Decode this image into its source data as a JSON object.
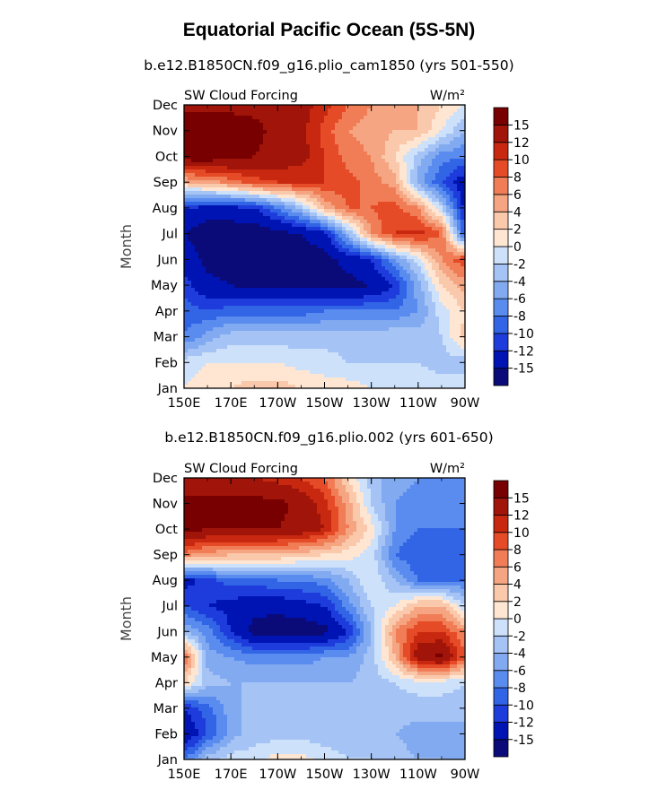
{
  "main_title": "Equatorial Pacific Ocean (5S-5N)",
  "colors": [
    "#0a0a78",
    "#0014b4",
    "#1e3cdc",
    "#3264e6",
    "#5a8cf0",
    "#82aaf0",
    "#a5c3f5",
    "#cde1fa",
    "#ffe6d2",
    "#fac8aa",
    "#f5a582",
    "#f07d55",
    "#e64b28",
    "#c8280f",
    "#a0140a",
    "#780000"
  ],
  "chart_data": [
    {
      "type": "heatmap",
      "run_title": "b.e12.B1850CN.f09_g16.plio_cam1850 (yrs 501-550)",
      "variable_label": "SW Cloud Forcing",
      "units_label": "W/m²",
      "ylabel": "Month",
      "x_tick_labels": [
        "150E",
        "170E",
        "170W",
        "150W",
        "130W",
        "110W",
        "90W"
      ],
      "y_tick_labels": [
        "Jan",
        "Feb",
        "Mar",
        "Apr",
        "May",
        "Jun",
        "Jul",
        "Aug",
        "Sep",
        "Oct",
        "Nov",
        "Dec"
      ],
      "colorbar_labels": [
        "-15",
        "-12",
        "-10",
        "-8",
        "-6",
        "-4",
        "-2",
        "0",
        "2",
        "4",
        "6",
        "8",
        "10",
        "12",
        "15"
      ],
      "x": [
        "150E",
        "160E",
        "170E",
        "180",
        "170W",
        "160W",
        "150W",
        "140W",
        "130W",
        "120W",
        "110W",
        "100W",
        "90W"
      ],
      "y": [
        "Jan",
        "Feb",
        "Mar",
        "Apr",
        "May",
        "Jun",
        "Jul",
        "Aug",
        "Sep",
        "Oct",
        "Nov",
        "Dec"
      ],
      "z": [
        [
          0,
          1,
          2,
          3,
          3,
          2,
          1,
          1,
          0,
          0,
          0,
          -1,
          -1
        ],
        [
          -1,
          0,
          0,
          0,
          0,
          -1,
          -1,
          -2,
          -2,
          -2,
          -2,
          -3,
          -3
        ],
        [
          -8,
          -5,
          -3,
          -3,
          -3,
          -3,
          -3,
          -3,
          -3,
          -2,
          -3,
          -2,
          3
        ],
        [
          -9,
          -10,
          -9,
          -9,
          -9,
          -9,
          -8,
          -8,
          -8,
          -8,
          -6,
          -1,
          2
        ],
        [
          -11,
          -14,
          -15,
          -16,
          -16,
          -16,
          -16,
          -16,
          -15,
          -12,
          -5,
          2,
          5
        ],
        [
          -13,
          -16,
          -17,
          -17,
          -17,
          -17,
          -16,
          -14,
          -12,
          -6,
          -1,
          6,
          10
        ],
        [
          -15,
          -17,
          -17,
          -17,
          -16,
          -15,
          -13,
          -4,
          6,
          10,
          11,
          8,
          -10
        ],
        [
          -12,
          -13,
          -13,
          -12,
          -8,
          -3,
          4,
          8,
          8,
          9,
          6,
          -2,
          -13
        ],
        [
          4,
          5,
          7,
          9,
          10,
          10,
          10,
          9,
          7,
          5,
          -5,
          -10,
          -14
        ],
        [
          17,
          17,
          16,
          15,
          14,
          13,
          10,
          7,
          6,
          2,
          -3,
          -7,
          -8
        ],
        [
          17,
          17,
          17,
          16,
          14,
          13,
          9,
          6,
          5,
          4,
          4,
          0,
          -4
        ],
        [
          14,
          14,
          14,
          14,
          14,
          13,
          11,
          8,
          6,
          5,
          4,
          2,
          0
        ]
      ]
    },
    {
      "type": "heatmap",
      "run_title": "b.e12.B1850CN.f09_g16.plio.002 (yrs 601-650)",
      "variable_label": "SW Cloud Forcing",
      "units_label": "W/m²",
      "ylabel": "Month",
      "x_tick_labels": [
        "150E",
        "170E",
        "170W",
        "150W",
        "130W",
        "110W",
        "90W"
      ],
      "y_tick_labels": [
        "Jan",
        "Feb",
        "Mar",
        "Apr",
        "May",
        "Jun",
        "Jul",
        "Aug",
        "Sep",
        "Oct",
        "Nov",
        "Dec"
      ],
      "colorbar_labels": [
        "-15",
        "-12",
        "-10",
        "-8",
        "-6",
        "-4",
        "-2",
        "0",
        "2",
        "4",
        "6",
        "8",
        "10",
        "12",
        "15"
      ],
      "x": [
        "150E",
        "160E",
        "170E",
        "180",
        "170W",
        "160W",
        "150W",
        "140W",
        "130W",
        "120W",
        "110W",
        "100W",
        "90W"
      ],
      "y": [
        "Jan",
        "Feb",
        "Mar",
        "Apr",
        "May",
        "Jun",
        "Jul",
        "Aug",
        "Sep",
        "Oct",
        "Nov",
        "Dec"
      ],
      "z": [
        [
          -8,
          -3,
          -1,
          -1,
          1,
          1,
          -1,
          -2,
          -2,
          -3,
          -4,
          -4,
          -5
        ],
        [
          -15,
          -10,
          -5,
          -3,
          -3,
          -3,
          -3,
          -3,
          -2,
          -4,
          -5,
          -5,
          -5
        ],
        [
          -12,
          -9,
          -5,
          -3,
          -3,
          -2,
          -2,
          -2,
          -2,
          -3,
          -3,
          -3,
          -3
        ],
        [
          2,
          -3,
          -4,
          -4,
          -4,
          -4,
          -4,
          -4,
          -3,
          -2,
          -1,
          -1,
          -2
        ],
        [
          9,
          -5,
          -6,
          -7,
          -7,
          -7,
          -6,
          -6,
          -3,
          4,
          14,
          16,
          8
        ],
        [
          -4,
          -7,
          -12,
          -16,
          -17,
          -17,
          -16,
          -12,
          -4,
          6,
          10,
          10,
          6
        ],
        [
          -10,
          -12,
          -13,
          -14,
          -14,
          -13,
          -12,
          -7,
          -2,
          0,
          4,
          4,
          -2
        ],
        [
          -13,
          -11,
          -9,
          -9,
          -8,
          -8,
          -7,
          -4,
          0,
          -4,
          -8,
          -8,
          -8
        ],
        [
          7,
          5,
          4,
          4,
          4,
          3,
          2,
          1,
          -1,
          -8,
          -10,
          -10,
          -8
        ],
        [
          16,
          15,
          15,
          15,
          15,
          14,
          12,
          6,
          1,
          -6,
          -8,
          -8,
          -8
        ],
        [
          16,
          16,
          16,
          16,
          16,
          14,
          11,
          5,
          -2,
          -6,
          -7,
          -7,
          -6
        ],
        [
          12,
          12,
          12,
          12,
          11,
          10,
          8,
          2,
          -3,
          -5,
          -6,
          -6,
          -6
        ]
      ]
    }
  ]
}
